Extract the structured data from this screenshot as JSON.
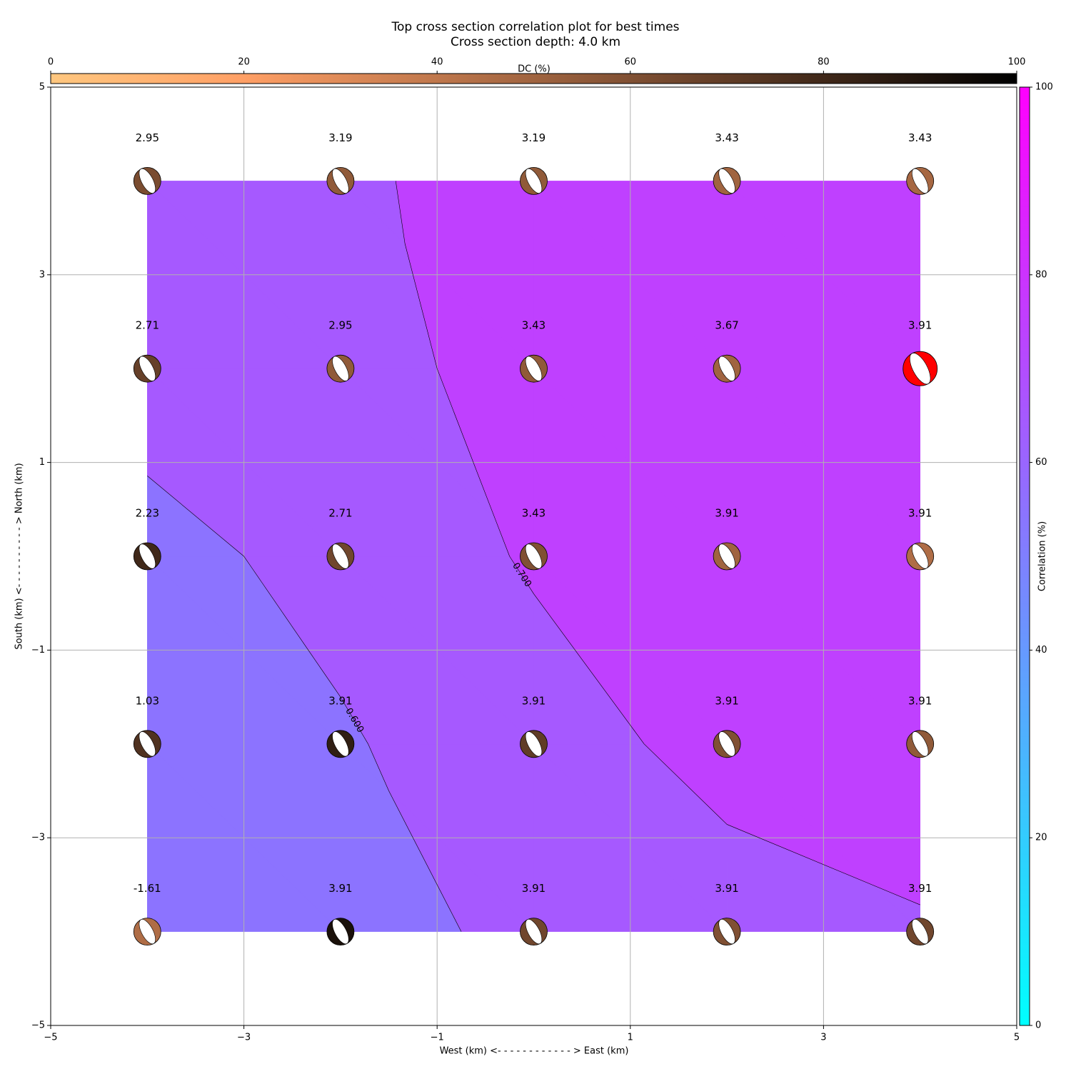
{
  "chart_data": {
    "type": "contour",
    "title": "Top cross section correlation plot for best times",
    "subtitle": "Cross section depth: 4.0 km",
    "x_label": "West (km) <- - - - - - - - - - - - > East (km)",
    "y_label": "South (km) <- - - - - - - - - - > North (km)",
    "xlim": [
      -5,
      5
    ],
    "ylim": [
      -5,
      5
    ],
    "xticks": [
      {
        "value": -5,
        "label": "−5"
      },
      {
        "value": -3,
        "label": "−3"
      },
      {
        "value": -1,
        "label": "−1"
      },
      1,
      3,
      5
    ],
    "yticks": [
      {
        "value": -5,
        "label": "−5"
      },
      {
        "value": -3,
        "label": "−3"
      },
      {
        "value": -1,
        "label": "−1"
      },
      1,
      3,
      5
    ],
    "grid": true,
    "correlation_colorbar": {
      "label": "Correlation (%)",
      "lim": [
        0,
        100
      ],
      "ticks": [
        0,
        20,
        40,
        60,
        80,
        100
      ],
      "colors": [
        "#00ffff",
        "#ff00ff"
      ]
    },
    "dc_colorbar": {
      "label": "DC (%)",
      "lim": [
        0,
        100
      ],
      "ticks": [
        0,
        20,
        40,
        60,
        80,
        100
      ],
      "colors": [
        "#ffc77f",
        "#ff9f65",
        "#bf774c",
        "#805033",
        "#402819",
        "#000000"
      ]
    },
    "fill_levels": [
      50,
      60,
      70,
      80
    ],
    "contour_levels": [
      {
        "value": 60,
        "label": "0.600"
      },
      {
        "value": 70,
        "label": "0.700"
      }
    ],
    "best_color": "#ff0000",
    "grid_points": {
      "x": [
        -4,
        -2,
        0,
        2,
        4
      ],
      "y": [
        4,
        2,
        0,
        -2,
        -4
      ],
      "time": [
        [
          2.95,
          3.19,
          3.19,
          3.43,
          3.43
        ],
        [
          2.71,
          2.95,
          3.43,
          3.67,
          3.91
        ],
        [
          2.23,
          2.71,
          3.43,
          3.91,
          3.91
        ],
        [
          1.03,
          3.91,
          3.91,
          3.91,
          3.91
        ],
        [
          -1.61,
          3.91,
          3.91,
          3.91,
          3.91
        ]
      ],
      "correlation": [
        [
          65,
          68,
          75,
          75,
          75
        ],
        [
          64,
          66,
          74,
          76,
          80
        ],
        [
          57,
          63,
          71,
          75,
          76
        ],
        [
          52,
          59,
          66,
          73,
          76
        ],
        [
          50,
          55,
          63,
          66,
          69
        ]
      ],
      "dc": [
        [
          62,
          55,
          55,
          50,
          48
        ],
        [
          68,
          55,
          55,
          50,
          50
        ],
        [
          80,
          65,
          60,
          50,
          45
        ],
        [
          75,
          85,
          70,
          60,
          55
        ],
        [
          45,
          92,
          65,
          60,
          65
        ]
      ]
    }
  }
}
